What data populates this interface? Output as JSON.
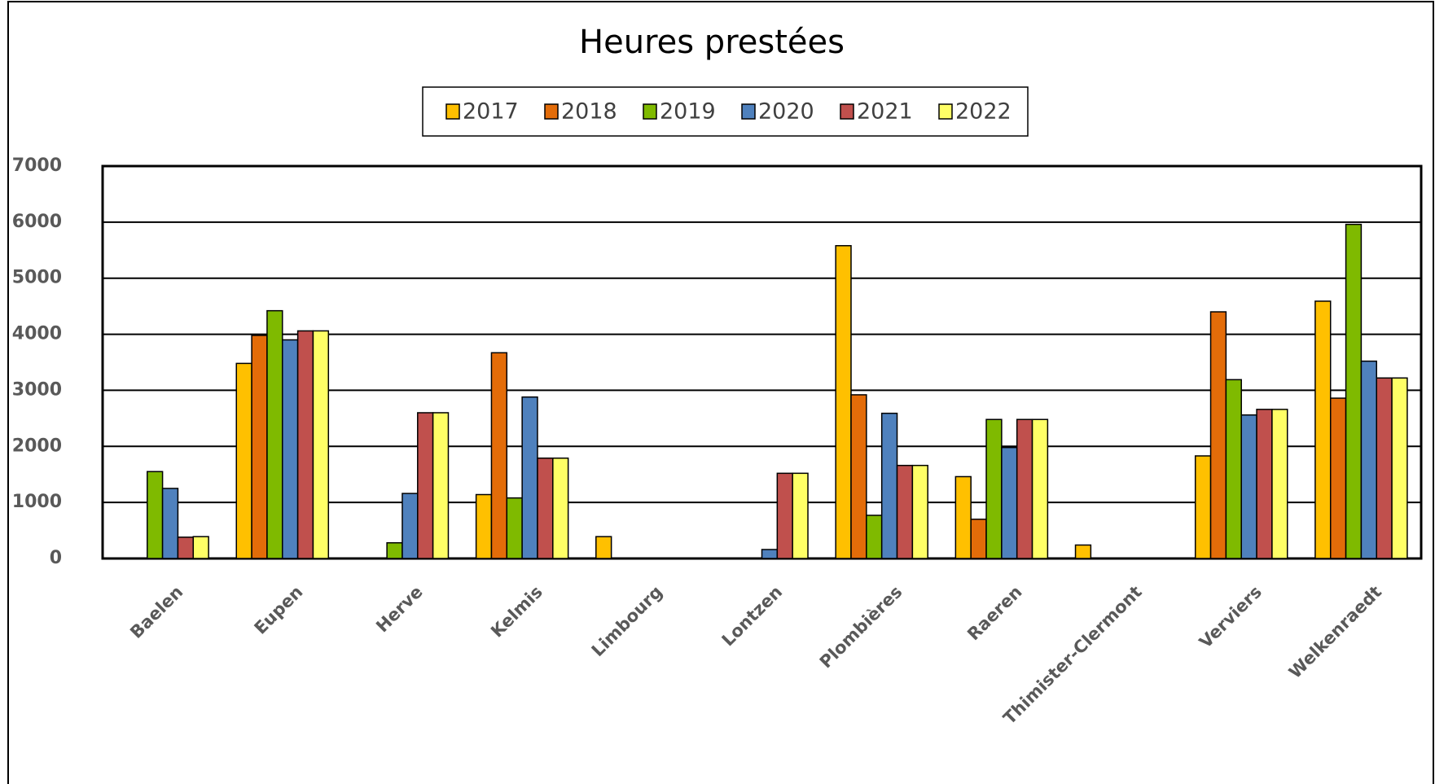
{
  "chart_data": {
    "type": "bar",
    "title": "Heures prestées",
    "categories": [
      "Baelen",
      "Eupen",
      "Herve",
      "Kelmis",
      "Limbourg",
      "Lontzen",
      "Plombières",
      "Raeren",
      "Thimister-Clermont",
      "Verviers",
      "Welkenraedt"
    ],
    "series": [
      {
        "name": "2017",
        "color": "#FFC000",
        "values": [
          0,
          3480,
          0,
          1140,
          390,
          0,
          5580,
          1460,
          240,
          1830,
          4590
        ]
      },
      {
        "name": "2018",
        "color": "#E36C09",
        "values": [
          0,
          3980,
          0,
          3670,
          0,
          0,
          2920,
          700,
          0,
          4400,
          2860
        ]
      },
      {
        "name": "2019",
        "color": "#7FBA00",
        "values": [
          1550,
          4420,
          280,
          1080,
          0,
          0,
          770,
          2480,
          0,
          3190,
          5960
        ]
      },
      {
        "name": "2020",
        "color": "#4F81BD",
        "values": [
          1250,
          3900,
          1160,
          2880,
          0,
          160,
          2590,
          1980,
          0,
          2560,
          3520
        ]
      },
      {
        "name": "2021",
        "color": "#C0504D",
        "values": [
          380,
          4060,
          2600,
          1790,
          0,
          1520,
          1660,
          2480,
          0,
          2660,
          3220
        ]
      },
      {
        "name": "2022",
        "color": "#FFFF66",
        "values": [
          390,
          4060,
          2600,
          1790,
          0,
          1520,
          1660,
          2480,
          0,
          2660,
          3220
        ]
      }
    ],
    "ylim": [
      0,
      7000
    ],
    "yticks": [
      0,
      1000,
      2000,
      3000,
      4000,
      5000,
      6000,
      7000
    ],
    "grid": true
  }
}
